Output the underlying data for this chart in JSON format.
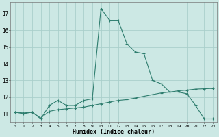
{
  "xlabel": "Humidex (Indice chaleur)",
  "x": [
    0,
    1,
    2,
    3,
    4,
    5,
    6,
    7,
    8,
    9,
    10,
    11,
    12,
    13,
    14,
    15,
    16,
    17,
    18,
    19,
    20,
    21,
    22,
    23
  ],
  "y_main": [
    11.1,
    11.0,
    11.1,
    10.7,
    11.5,
    11.8,
    11.5,
    11.5,
    11.8,
    11.9,
    17.3,
    16.6,
    16.6,
    15.2,
    14.7,
    14.6,
    13.0,
    12.8,
    12.3,
    12.3,
    12.2,
    11.5,
    10.7,
    10.7
  ],
  "y_line": [
    11.1,
    11.05,
    11.1,
    10.75,
    11.15,
    11.25,
    11.3,
    11.35,
    11.4,
    11.5,
    11.6,
    11.7,
    11.8,
    11.85,
    11.95,
    12.05,
    12.15,
    12.25,
    12.3,
    12.38,
    12.42,
    12.48,
    12.5,
    12.52
  ],
  "line_color": "#2e7d6e",
  "bg_color": "#cce8e4",
  "grid_color": "#aacfcb",
  "ylim": [
    10.5,
    17.7
  ],
  "yticks": [
    11,
    12,
    13,
    14,
    15,
    16,
    17
  ],
  "xlim": [
    -0.5,
    23.5
  ],
  "figsize": [
    3.2,
    2.0
  ],
  "dpi": 100
}
